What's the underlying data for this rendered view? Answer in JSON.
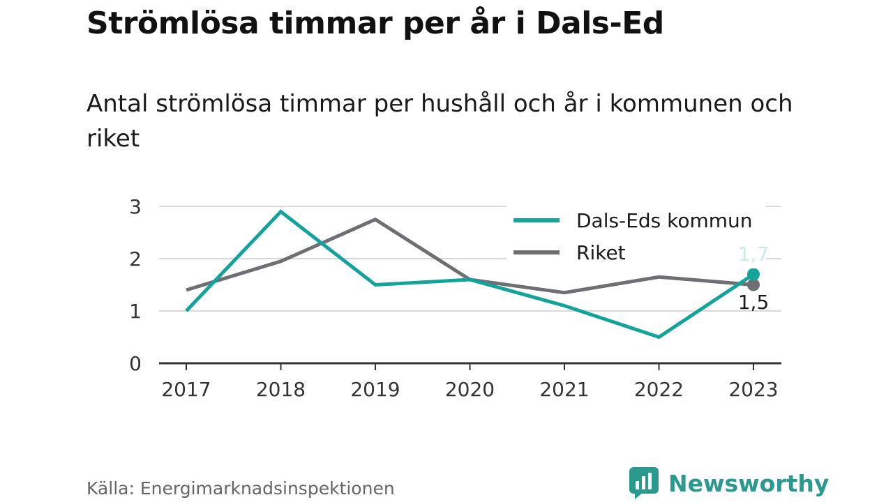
{
  "title": "Strömlösa timmar per år i Dals-Ed",
  "subtitle": "Antal strömlösa timmar per hushåll och år i kommunen och riket",
  "source": "Källa: Energimarknadsinspektionen",
  "logo_text": "Newsworthy",
  "colors": {
    "dalsed": "#14a39a",
    "riket": "#6e6e73",
    "logo": "#2a9a8e",
    "grid": "#d9d9d9",
    "axis": "#333333"
  },
  "chart_data": {
    "type": "line",
    "categories": [
      "2017",
      "2018",
      "2019",
      "2020",
      "2021",
      "2022",
      "2023"
    ],
    "ylim": [
      0,
      3
    ],
    "yticks": [
      0,
      1,
      2,
      3
    ],
    "grid": true,
    "legend_position": "top-right",
    "series": [
      {
        "name": "Dals-Eds kommun",
        "values": [
          1.0,
          2.9,
          1.5,
          1.6,
          1.1,
          0.5,
          1.7
        ],
        "end_label": "1,7"
      },
      {
        "name": "Riket",
        "values": [
          1.4,
          1.95,
          2.75,
          1.6,
          1.35,
          1.65,
          1.5
        ],
        "end_label": "1,5"
      }
    ]
  }
}
